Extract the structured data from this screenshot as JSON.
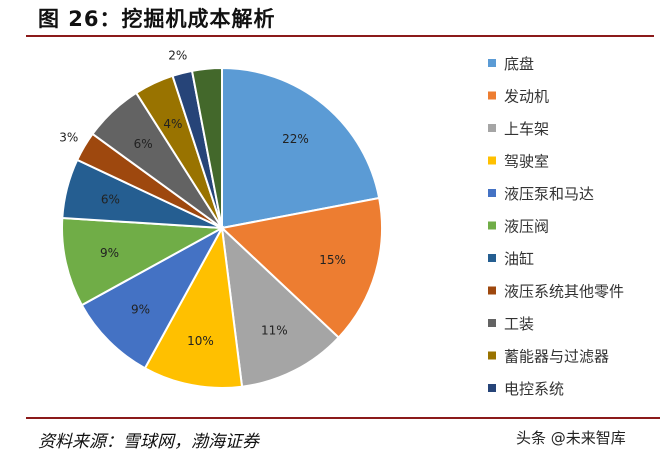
{
  "header": {
    "title": "图 26：挖掘机成本解析"
  },
  "footer": {
    "source": "资料来源：雪球网，渤海证券",
    "watermark": "头条 @未来智库"
  },
  "chart_data": {
    "type": "pie",
    "categories": [
      "底盘",
      "发动机",
      "上车架",
      "驾驶室",
      "液压泵和马达",
      "液压阀",
      "油缸",
      "液压系统其他零件",
      "工装",
      "蓄能器与过滤器",
      "电控系统"
    ],
    "values": [
      22,
      15,
      11,
      10,
      9,
      9,
      6,
      3,
      6,
      4,
      2
    ],
    "labels": [
      "22%",
      "15%",
      "11%",
      "10%",
      "9%",
      "9%",
      "6%",
      "3%",
      "6%",
      "4%",
      "2%"
    ],
    "colors": [
      "#5b9bd5",
      "#ed7d31",
      "#a5a5a5",
      "#ffc000",
      "#4472c4",
      "#70ad47",
      "#255e91",
      "#9e480e",
      "#636363",
      "#997300",
      "#264478"
    ],
    "extra_slice_color": "#43682b",
    "legend_position": "right"
  }
}
